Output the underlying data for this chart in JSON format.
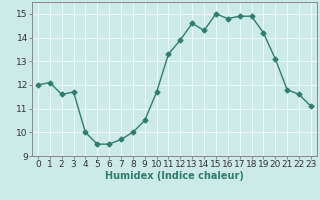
{
  "x": [
    0,
    1,
    2,
    3,
    4,
    5,
    6,
    7,
    8,
    9,
    10,
    11,
    12,
    13,
    14,
    15,
    16,
    17,
    18,
    19,
    20,
    21,
    22,
    23
  ],
  "y": [
    12.0,
    12.1,
    11.6,
    11.7,
    10.0,
    9.5,
    9.5,
    9.7,
    10.0,
    10.5,
    11.7,
    13.3,
    13.9,
    14.6,
    14.3,
    15.0,
    14.8,
    14.9,
    14.9,
    14.2,
    13.1,
    11.8,
    11.6,
    11.1
  ],
  "line_color": "#2e7d6e",
  "marker": "D",
  "marker_size": 2.5,
  "bg_color": "#cceae8",
  "grid_color": "#f0fafa",
  "xlabel": "Humidex (Indice chaleur)",
  "xlim": [
    -0.5,
    23.5
  ],
  "ylim": [
    9,
    15.5
  ],
  "yticks": [
    9,
    10,
    11,
    12,
    13,
    14,
    15
  ],
  "xticks": [
    0,
    1,
    2,
    3,
    4,
    5,
    6,
    7,
    8,
    9,
    10,
    11,
    12,
    13,
    14,
    15,
    16,
    17,
    18,
    19,
    20,
    21,
    22,
    23
  ],
  "xlabel_fontsize": 7.0,
  "tick_fontsize": 6.5,
  "xlabel_bold": true
}
